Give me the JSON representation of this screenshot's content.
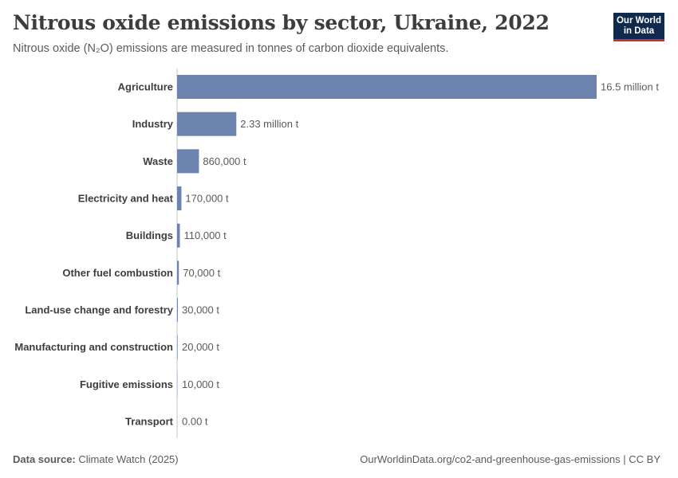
{
  "header": {
    "title": "Nitrous oxide emissions by sector, Ukraine, 2022",
    "subtitle": "Nitrous oxide (N₂O) emissions are measured in tonnes of carbon dioxide equivalents."
  },
  "logo": {
    "line1": "Our World",
    "line2": "in Data"
  },
  "footer": {
    "source_label": "Data source:",
    "source_value": "Climate Watch (2025)",
    "url": "OurWorldinData.org/co2-and-greenhouse-gas-emissions | CC BY"
  },
  "colors": {
    "bar": "#6c83ad",
    "axis": "#c4c4c4",
    "label": "#3d3d3d",
    "value": "#5b5b5b"
  },
  "chart_data": {
    "type": "bar",
    "orientation": "horizontal",
    "categories": [
      "Agriculture",
      "Industry",
      "Waste",
      "Electricity and heat",
      "Buildings",
      "Other fuel combustion",
      "Land-use change and forestry",
      "Manufacturing and construction",
      "Fugitive emissions",
      "Transport"
    ],
    "values": [
      16500000,
      2330000,
      860000,
      170000,
      110000,
      70000,
      30000,
      20000,
      10000,
      0
    ],
    "value_labels": [
      "16.5 million t",
      "2.33 million t",
      "860,000 t",
      "170,000 t",
      "110,000 t",
      "70,000 t",
      "30,000 t",
      "20,000 t",
      "10,000 t",
      "0.00 t"
    ],
    "unit": "tonnes of CO₂ equivalents"
  }
}
